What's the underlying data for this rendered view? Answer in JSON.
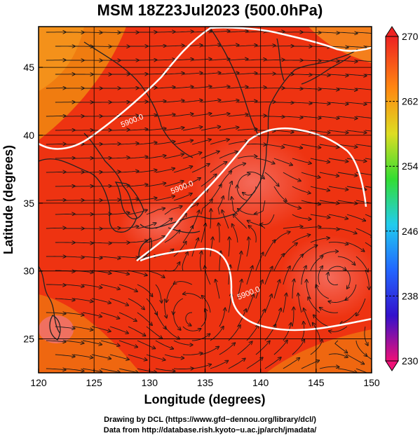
{
  "title": "MSM 18Z23Jul2023 (500.0hPa)",
  "map": {
    "xlabel": "Longitude (degrees)",
    "ylabel": "Latitude  (degrees)",
    "lon_range": [
      120,
      150
    ],
    "lat_range": [
      22.5,
      48
    ],
    "lon_ticks": [
      "120",
      "125",
      "130",
      "135",
      "140",
      "145",
      "150"
    ],
    "lat_ticks": [
      "25",
      "30",
      "35",
      "40",
      "45"
    ],
    "grid": true,
    "field": "temperature shaded with streamlines, 5900 contour",
    "contour_value_label": "5900.0",
    "contour_labels": [
      {
        "text": "5900.0",
        "lon": 128.5,
        "lat": 40.9
      },
      {
        "text": "5900.0",
        "lon": 133.0,
        "lat": 36.0
      },
      {
        "text": "5900.0",
        "lon": 139.0,
        "lat": 28.2
      }
    ],
    "colors": {
      "field_main": "#ee3311",
      "field_warm": "#f06a55",
      "field_cool": "#f08a10",
      "coast": "#222222",
      "contour": "#ffffff"
    }
  },
  "colorbar": {
    "labels": [
      "270",
      "262",
      "254",
      "246",
      "238",
      "230"
    ],
    "min": 230,
    "max": 270,
    "stops": [
      "#ee1177",
      "#3311cc",
      "#2266ff",
      "#22ccee",
      "#33dd33",
      "#dddd22",
      "#ff8811",
      "#ee2222"
    ]
  },
  "credits": [
    "Drawing by DCL (https://www.gfd−dennou.org/library/dcl/)",
    "Data from http://database.rish.kyoto−u.ac.jp/arch/jmadata/"
  ]
}
